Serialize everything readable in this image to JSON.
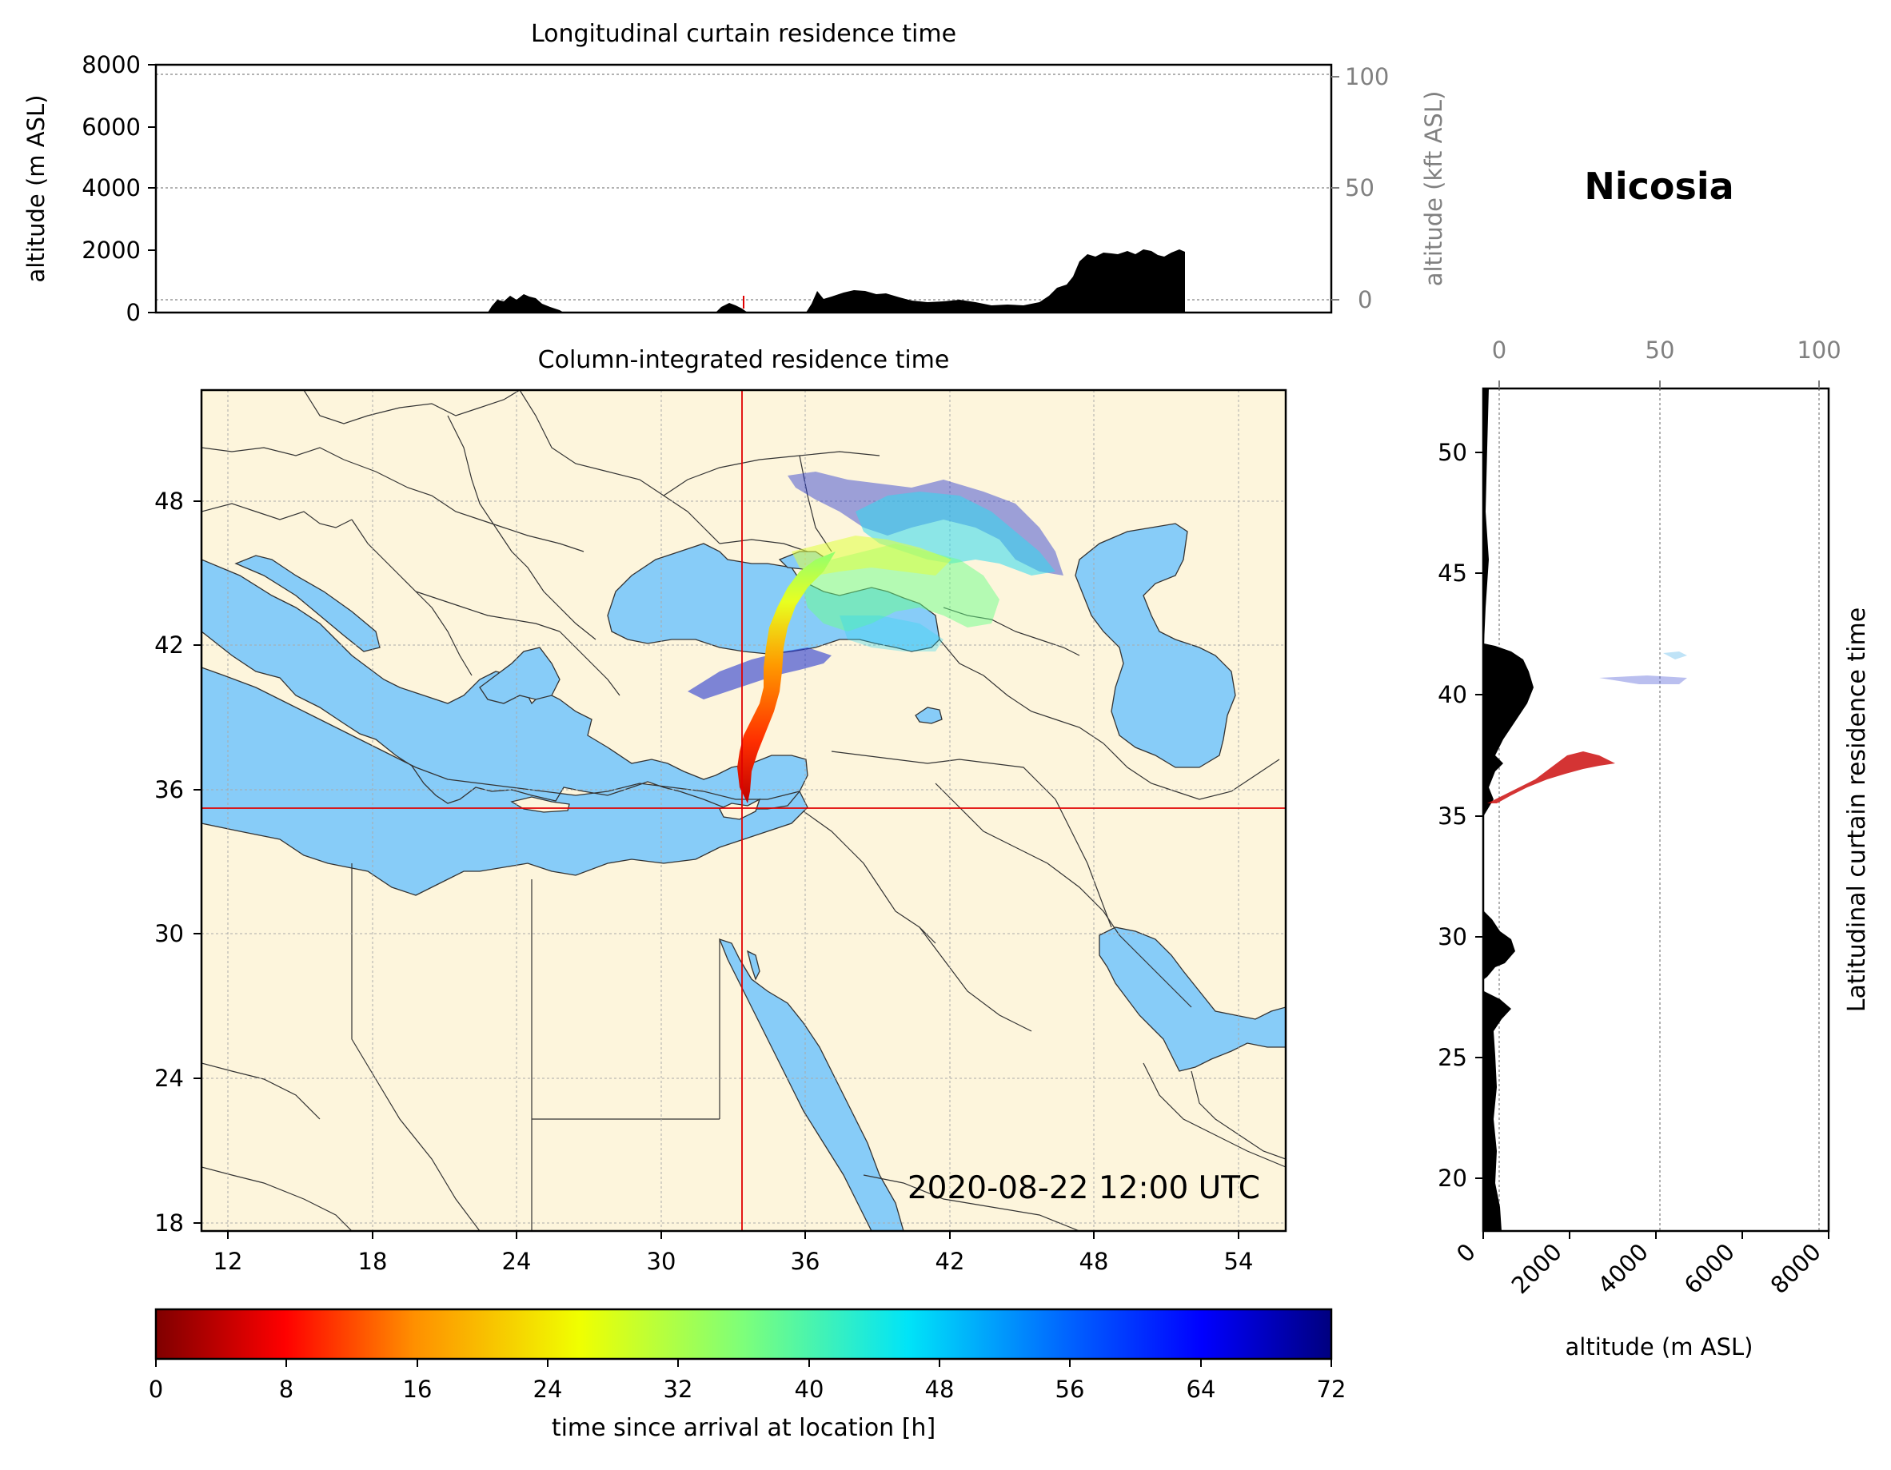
{
  "location_name": "Nicosia",
  "timestamp": "2020-08-22 12:00 UTC",
  "panels": {
    "top": {
      "title": "Longitudinal curtain residence time",
      "ylabel_left": "altitude (m ASL)",
      "ylabel_right": "altitude (kft ASL)",
      "yticks_left": [
        "0",
        "2000",
        "4000",
        "6000",
        "8000"
      ],
      "yticks_right": [
        "0",
        "50",
        "100"
      ]
    },
    "map": {
      "title": "Column-integrated residence time",
      "xticks": [
        "12",
        "18",
        "24",
        "30",
        "36",
        "42",
        "48",
        "54"
      ],
      "yticks": [
        "18",
        "24",
        "30",
        "36",
        "42",
        "48"
      ],
      "lon_range": [
        10.9,
        55.9
      ],
      "lat_range": [
        17.9,
        52.8
      ],
      "crosshair": {
        "lon": 33.4,
        "lat": 35.2
      },
      "colors": {
        "land": "#fdf5dc",
        "sea": "#87ccf8",
        "crosshair": "#e00000"
      }
    },
    "right": {
      "ylabel": "Latitudinal curtain residence time",
      "xlabel": "altitude (m ASL)",
      "xticks_bottom": [
        "0",
        "2000",
        "4000",
        "6000",
        "8000"
      ],
      "xticks_top": [
        "0",
        "50",
        "100"
      ],
      "yticks": [
        "20",
        "25",
        "30",
        "35",
        "40",
        "45",
        "50"
      ]
    },
    "colorbar": {
      "label": "time since arrival at location [h]",
      "ticks": [
        "0",
        "8",
        "16",
        "24",
        "32",
        "40",
        "48",
        "56",
        "64",
        "72"
      ],
      "colormap": "jet_r",
      "range": [
        0,
        72
      ]
    }
  }
}
